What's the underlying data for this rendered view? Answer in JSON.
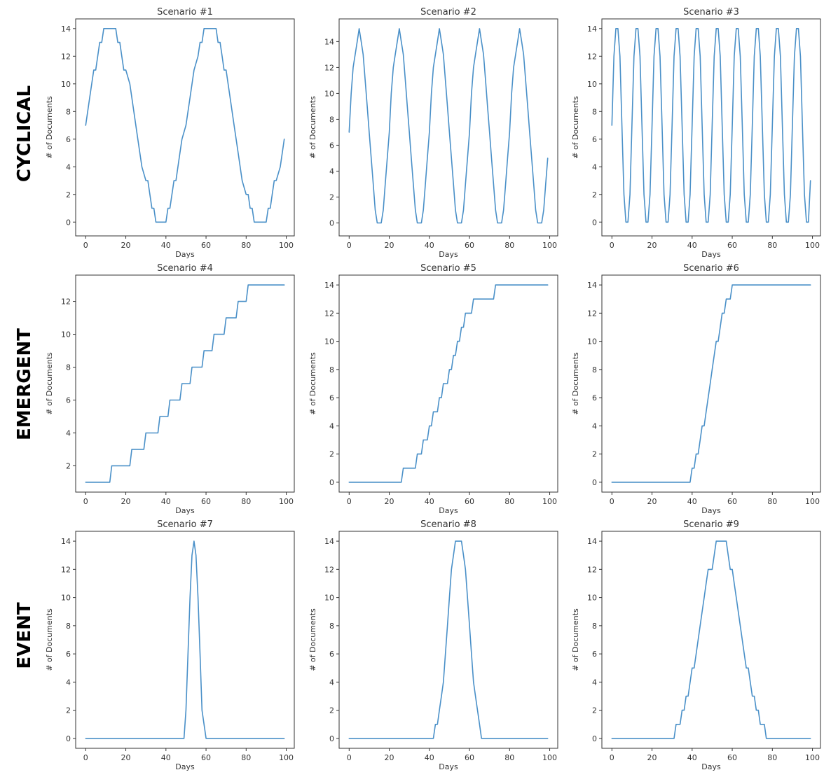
{
  "figure": {
    "row_labels": [
      "CYCLICAL",
      "EMERGENT",
      "EVENT"
    ],
    "line_color": "#4a90c8"
  },
  "chart_data": [
    {
      "type": "line",
      "title": "Scenario #1",
      "xlabel": "Days",
      "ylabel": "# of Documents",
      "xlim": [
        -5,
        104
      ],
      "ylim": [
        -1,
        14.7
      ],
      "xticks": [
        0,
        20,
        40,
        60,
        80,
        100
      ],
      "yticks": [
        0,
        2,
        4,
        6,
        8,
        10,
        12,
        14
      ],
      "x": [
        0,
        2,
        4,
        5,
        7,
        8,
        9,
        10,
        12,
        14,
        15,
        16,
        17,
        18,
        19,
        20,
        22,
        24,
        26,
        28,
        30,
        31,
        32,
        33,
        34,
        35,
        36,
        38,
        40,
        41,
        42,
        43,
        44,
        45,
        47,
        48,
        50,
        52,
        54,
        56,
        57,
        58,
        59,
        60,
        62,
        64,
        65,
        66,
        67,
        68,
        69,
        70,
        72,
        74,
        76,
        78,
        80,
        81,
        82,
        83,
        84,
        85,
        86,
        88,
        90,
        91,
        92,
        93,
        94,
        95,
        97,
        99
      ],
      "y": [
        7,
        9,
        11,
        11,
        13,
        13,
        14,
        14,
        14,
        14,
        14,
        13,
        13,
        12,
        11,
        11,
        10,
        8,
        6,
        4,
        3,
        3,
        2,
        1,
        1,
        0,
        0,
        0,
        0,
        1,
        1,
        2,
        3,
        3,
        5,
        6,
        7,
        9,
        11,
        12,
        13,
        13,
        14,
        14,
        14,
        14,
        14,
        13,
        13,
        12,
        11,
        11,
        9,
        7,
        5,
        3,
        2,
        2,
        1,
        1,
        0,
        0,
        0,
        0,
        0,
        1,
        1,
        2,
        3,
        3,
        4,
        6
      ]
    },
    {
      "type": "line",
      "title": "Scenario #2",
      "xlabel": "Days",
      "ylabel": "# of Documents",
      "xlim": [
        -5,
        104
      ],
      "ylim": [
        -1,
        15.75
      ],
      "xticks": [
        0,
        20,
        40,
        60,
        80,
        100
      ],
      "yticks": [
        0,
        2,
        4,
        6,
        8,
        10,
        12,
        14
      ],
      "x": [
        0,
        1,
        2,
        3,
        4,
        5,
        6,
        7,
        8,
        9,
        10,
        11,
        12,
        13,
        14,
        15,
        16,
        17,
        18,
        19,
        20,
        21,
        22,
        23,
        24,
        25,
        26,
        27,
        28,
        29,
        30,
        31,
        32,
        33,
        34,
        35,
        36,
        37,
        38,
        39,
        40,
        41,
        42,
        43,
        44,
        45,
        46,
        47,
        48,
        49,
        50,
        51,
        52,
        53,
        54,
        55,
        56,
        57,
        58,
        59,
        60,
        61,
        62,
        63,
        64,
        65,
        66,
        67,
        68,
        69,
        70,
        71,
        72,
        73,
        74,
        75,
        76,
        77,
        78,
        79,
        80,
        81,
        82,
        83,
        84,
        85,
        86,
        87,
        88,
        89,
        90,
        91,
        92,
        93,
        94,
        95,
        96,
        97,
        98,
        99
      ],
      "y": [
        7,
        10,
        12,
        13,
        14,
        15,
        14,
        13,
        11,
        9,
        7,
        5,
        3,
        1,
        0,
        0,
        0,
        1,
        3,
        5,
        7,
        10,
        12,
        13,
        14,
        15,
        14,
        13,
        11,
        9,
        7,
        5,
        3,
        1,
        0,
        0,
        0,
        1,
        3,
        5,
        7,
        10,
        12,
        13,
        14,
        15,
        14,
        13,
        11,
        9,
        7,
        5,
        3,
        1,
        0,
        0,
        0,
        1,
        3,
        5,
        7,
        10,
        12,
        13,
        14,
        15,
        14,
        13,
        11,
        9,
        7,
        5,
        3,
        1,
        0,
        0,
        0,
        1,
        3,
        5,
        7,
        10,
        12,
        13,
        14,
        15,
        14,
        13,
        11,
        9,
        7,
        5,
        3,
        1,
        0,
        0,
        0,
        1,
        3,
        5
      ]
    },
    {
      "type": "line",
      "title": "Scenario #3",
      "xlabel": "Days",
      "ylabel": "# of Documents",
      "xlim": [
        -5,
        104
      ],
      "ylim": [
        -1,
        14.7
      ],
      "xticks": [
        0,
        20,
        40,
        60,
        80,
        100
      ],
      "yticks": [
        0,
        2,
        4,
        6,
        8,
        10,
        12,
        14
      ],
      "x": [
        0,
        1,
        2,
        3,
        4,
        5,
        6,
        7,
        8,
        9,
        10,
        11,
        12,
        13,
        14,
        15,
        16,
        17,
        18,
        19,
        20,
        21,
        22,
        23,
        24,
        25,
        26,
        27,
        28,
        29,
        30,
        31,
        32,
        33,
        34,
        35,
        36,
        37,
        38,
        39,
        40,
        41,
        42,
        43,
        44,
        45,
        46,
        47,
        48,
        49,
        50,
        51,
        52,
        53,
        54,
        55,
        56,
        57,
        58,
        59,
        60,
        61,
        62,
        63,
        64,
        65,
        66,
        67,
        68,
        69,
        70,
        71,
        72,
        73,
        74,
        75,
        76,
        77,
        78,
        79,
        80,
        81,
        82,
        83,
        84,
        85,
        86,
        87,
        88,
        89,
        90,
        91,
        92,
        93,
        94,
        95,
        96,
        97,
        98,
        99
      ],
      "y": [
        7,
        12,
        14,
        14,
        12,
        7,
        2,
        0,
        0,
        2,
        7,
        12,
        14,
        14,
        12,
        7,
        2,
        0,
        0,
        2,
        7,
        12,
        14,
        14,
        12,
        7,
        2,
        0,
        0,
        2,
        7,
        12,
        14,
        14,
        12,
        7,
        2,
        0,
        0,
        2,
        7,
        12,
        14,
        14,
        12,
        7,
        2,
        0,
        0,
        2,
        7,
        12,
        14,
        14,
        12,
        7,
        2,
        0,
        0,
        2,
        7,
        12,
        14,
        14,
        12,
        7,
        2,
        0,
        0,
        2,
        7,
        12,
        14,
        14,
        12,
        7,
        2,
        0,
        0,
        2,
        7,
        12,
        14,
        14,
        12,
        7,
        2,
        0,
        0,
        2,
        7,
        12,
        14,
        14,
        12,
        7,
        2,
        0,
        0,
        3
      ]
    },
    {
      "type": "line",
      "title": "Scenario #4",
      "xlabel": "Days",
      "ylabel": "# of Documents",
      "xlim": [
        -5,
        104
      ],
      "ylim": [
        0.4,
        13.6
      ],
      "xticks": [
        0,
        20,
        40,
        60,
        80,
        100
      ],
      "yticks": [
        2,
        4,
        6,
        8,
        10,
        12
      ],
      "x": [
        0,
        12,
        13,
        22,
        23,
        29,
        30,
        36,
        37,
        41,
        42,
        47,
        48,
        52,
        53,
        58,
        59,
        63,
        64,
        69,
        70,
        75,
        76,
        80,
        81,
        87,
        88,
        99
      ],
      "y": [
        1,
        1,
        2,
        2,
        3,
        3,
        4,
        4,
        5,
        5,
        6,
        6,
        7,
        7,
        8,
        8,
        9,
        9,
        10,
        10,
        11,
        11,
        12,
        12,
        13,
        13,
        13,
        13
      ]
    },
    {
      "type": "line",
      "title": "Scenario #5",
      "xlabel": "Days",
      "ylabel": "# of Documents",
      "xlim": [
        -5,
        104
      ],
      "ylim": [
        -0.7,
        14.7
      ],
      "xticks": [
        0,
        20,
        40,
        60,
        80,
        100
      ],
      "yticks": [
        0,
        2,
        4,
        6,
        8,
        10,
        12,
        14
      ],
      "x": [
        0,
        26,
        27,
        33,
        34,
        36,
        37,
        39,
        40,
        41,
        42,
        44,
        45,
        46,
        47,
        49,
        50,
        51,
        52,
        53,
        54,
        55,
        56,
        57,
        58,
        60,
        61,
        62,
        63,
        66,
        67,
        72,
        73,
        99
      ],
      "y": [
        0,
        0,
        1,
        1,
        2,
        2,
        3,
        3,
        4,
        4,
        5,
        5,
        6,
        6,
        7,
        7,
        8,
        8,
        9,
        9,
        10,
        10,
        11,
        11,
        12,
        12,
        12,
        13,
        13,
        13,
        13,
        13,
        14,
        14
      ]
    },
    {
      "type": "line",
      "title": "Scenario #6",
      "xlabel": "Days",
      "ylabel": "# of Documents",
      "xlim": [
        -5,
        104
      ],
      "ylim": [
        -0.7,
        14.7
      ],
      "xticks": [
        0,
        20,
        40,
        60,
        80,
        100
      ],
      "yticks": [
        0,
        2,
        4,
        6,
        8,
        10,
        12,
        14
      ],
      "x": [
        0,
        39,
        40,
        41,
        42,
        43,
        44,
        45,
        46,
        47,
        48,
        49,
        50,
        51,
        52,
        53,
        54,
        55,
        56,
        57,
        58,
        59,
        60,
        61,
        99
      ],
      "y": [
        0,
        0,
        1,
        1,
        2,
        2,
        3,
        4,
        4,
        5,
        6,
        7,
        8,
        9,
        10,
        10,
        11,
        12,
        12,
        13,
        13,
        13,
        14,
        14,
        14
      ]
    },
    {
      "type": "line",
      "title": "Scenario #7",
      "xlabel": "Days",
      "ylabel": "# of Documents",
      "xlim": [
        -5,
        104
      ],
      "ylim": [
        -0.7,
        14.7
      ],
      "xticks": [
        0,
        20,
        40,
        60,
        80,
        100
      ],
      "yticks": [
        0,
        2,
        4,
        6,
        8,
        10,
        12,
        14
      ],
      "x": [
        0,
        48,
        49,
        50,
        51,
        52,
        53,
        54,
        55,
        56,
        57,
        58,
        59,
        60,
        61,
        99
      ],
      "y": [
        0,
        0,
        0,
        2,
        6,
        10,
        13,
        14,
        13,
        10,
        6,
        2,
        1,
        0,
        0,
        0
      ]
    },
    {
      "type": "line",
      "title": "Scenario #8",
      "xlabel": "Days",
      "ylabel": "# of Documents",
      "xlim": [
        -5,
        104
      ],
      "ylim": [
        -0.7,
        14.7
      ],
      "xticks": [
        0,
        20,
        40,
        60,
        80,
        100
      ],
      "yticks": [
        0,
        2,
        4,
        6,
        8,
        10,
        12,
        14
      ],
      "x": [
        0,
        42,
        43,
        44,
        45,
        46,
        47,
        48,
        49,
        50,
        51,
        52,
        53,
        54,
        55,
        56,
        57,
        58,
        59,
        60,
        61,
        62,
        63,
        64,
        65,
        66,
        99
      ],
      "y": [
        0,
        0,
        1,
        1,
        2,
        3,
        4,
        6,
        8,
        10,
        12,
        13,
        14,
        14,
        14,
        14,
        13,
        12,
        10,
        8,
        6,
        4,
        3,
        2,
        1,
        0,
        0
      ]
    },
    {
      "type": "line",
      "title": "Scenario #9",
      "xlabel": "Days",
      "ylabel": "# of Documents",
      "xlim": [
        -5,
        104
      ],
      "ylim": [
        -0.7,
        14.7
      ],
      "xticks": [
        0,
        20,
        40,
        60,
        80,
        100
      ],
      "yticks": [
        0,
        2,
        4,
        6,
        8,
        10,
        12,
        14
      ],
      "x": [
        0,
        31,
        32,
        33,
        34,
        35,
        36,
        37,
        38,
        40,
        41,
        43,
        45,
        46,
        47,
        48,
        50,
        51,
        52,
        54,
        56,
        57,
        58,
        59,
        60,
        61,
        62,
        64,
        66,
        67,
        68,
        69,
        70,
        71,
        72,
        73,
        74,
        75,
        76,
        77,
        78,
        99
      ],
      "y": [
        0,
        0,
        1,
        1,
        1,
        2,
        2,
        3,
        3,
        5,
        5,
        7,
        9,
        10,
        11,
        12,
        12,
        13,
        14,
        14,
        14,
        14,
        13,
        12,
        12,
        11,
        10,
        8,
        6,
        5,
        5,
        4,
        3,
        3,
        2,
        2,
        1,
        1,
        1,
        0,
        0,
        0
      ]
    }
  ]
}
